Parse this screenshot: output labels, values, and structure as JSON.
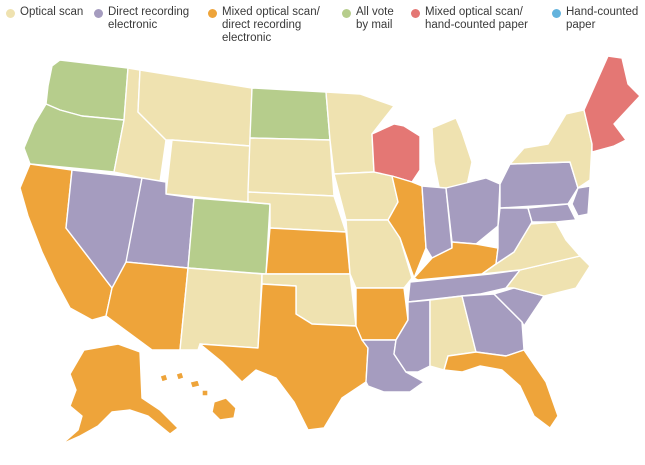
{
  "legend": [
    {
      "key": "optical",
      "label": "Optical scan",
      "color": "#efe2b0"
    },
    {
      "key": "dre",
      "label": "Direct recording\nelectronic",
      "color": "#a59cbf"
    },
    {
      "key": "mixed_dre",
      "label": "Mixed optical scan/\ndirect recording\nelectronic",
      "color": "#eea43a"
    },
    {
      "key": "mail",
      "label": "All vote\nby mail",
      "color": "#b6cd8c"
    },
    {
      "key": "mixed_hand",
      "label": "Mixed optical scan/\nhand-counted paper",
      "color": "#e47774"
    },
    {
      "key": "hand",
      "label": "Hand-counted\npaper",
      "color": "#63b3dd"
    }
  ],
  "map_regions": [
    {
      "region": "washington",
      "category": "mail"
    },
    {
      "region": "oregon",
      "category": "mail"
    },
    {
      "region": "california",
      "category": "mixed_dre"
    },
    {
      "region": "nevada",
      "category": "dre"
    },
    {
      "region": "idaho",
      "category": "optical"
    },
    {
      "region": "montana",
      "category": "optical"
    },
    {
      "region": "wyoming",
      "category": "optical"
    },
    {
      "region": "utah",
      "category": "dre"
    },
    {
      "region": "colorado",
      "category": "mail"
    },
    {
      "region": "arizona",
      "category": "mixed_dre"
    },
    {
      "region": "new-mexico",
      "category": "optical"
    },
    {
      "region": "north-dakota",
      "category": "mail"
    },
    {
      "region": "south-dakota",
      "category": "optical"
    },
    {
      "region": "nebraska",
      "category": "optical"
    },
    {
      "region": "kansas",
      "category": "mixed_dre"
    },
    {
      "region": "oklahoma",
      "category": "optical"
    },
    {
      "region": "texas",
      "category": "mixed_dre"
    },
    {
      "region": "minnesota",
      "category": "optical"
    },
    {
      "region": "iowa",
      "category": "optical"
    },
    {
      "region": "missouri",
      "category": "optical"
    },
    {
      "region": "arkansas",
      "category": "mixed_dre"
    },
    {
      "region": "louisiana",
      "category": "dre"
    },
    {
      "region": "wisconsin",
      "category": "mixed_hand"
    },
    {
      "region": "illinois",
      "category": "mixed_dre"
    },
    {
      "region": "michigan",
      "category": "optical"
    },
    {
      "region": "indiana",
      "category": "dre"
    },
    {
      "region": "ohio",
      "category": "dre"
    },
    {
      "region": "kentucky",
      "category": "mixed_dre"
    },
    {
      "region": "tennessee",
      "category": "dre"
    },
    {
      "region": "mississippi",
      "category": "dre"
    },
    {
      "region": "alabama",
      "category": "optical"
    },
    {
      "region": "georgia",
      "category": "dre"
    },
    {
      "region": "florida",
      "category": "mixed_dre"
    },
    {
      "region": "south-carolina",
      "category": "dre"
    },
    {
      "region": "north-carolina",
      "category": "optical"
    },
    {
      "region": "virginia",
      "category": "optical"
    },
    {
      "region": "west-virginia",
      "category": "dre"
    },
    {
      "region": "pennsylvania",
      "category": "dre"
    },
    {
      "region": "new-york",
      "category": "optical"
    },
    {
      "region": "new-jersey",
      "category": "dre"
    },
    {
      "region": "maryland",
      "category": "dre"
    },
    {
      "region": "new-england",
      "category": "mixed_hand"
    },
    {
      "region": "alaska",
      "category": "mixed_dre"
    },
    {
      "region": "hawaii",
      "category": "mixed_dre"
    }
  ]
}
